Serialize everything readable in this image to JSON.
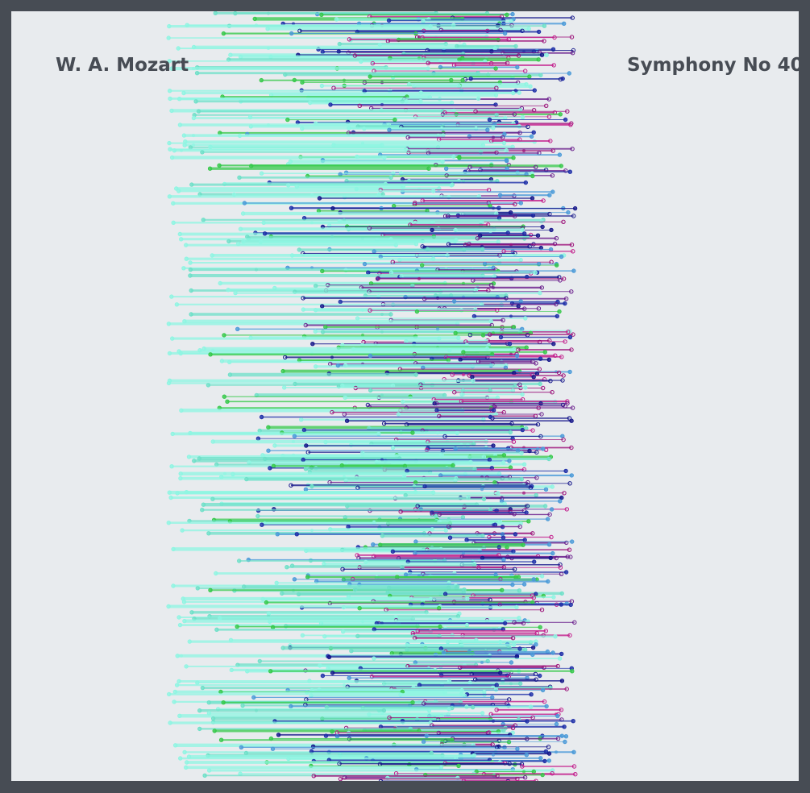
{
  "composer": "W. A. Mozart",
  "work": "Symphony No 40",
  "colors": {
    "frame": "#474c54",
    "background": "#e8ebee",
    "text": "#474c54",
    "palette": [
      "#8ef5e2",
      "#6ee0c8",
      "#36c94a",
      "#4a9ad8",
      "#1e2fa8",
      "#15168a",
      "#6a1e8c",
      "#9b0f78",
      "#c21a8a"
    ]
  }
}
